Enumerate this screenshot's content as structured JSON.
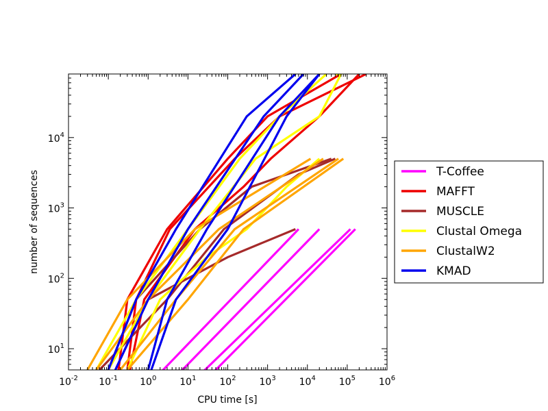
{
  "chart_data": {
    "type": "line",
    "xlabel": "CPU time [s]",
    "ylabel": "number of sequences",
    "x_scale": "log",
    "y_scale": "log",
    "xlim": [
      0.01,
      1000000
    ],
    "ylim": [
      5,
      80000
    ],
    "x_ticks": [
      {
        "base": "10",
        "exp": "-2",
        "value": 0.01
      },
      {
        "base": "10",
        "exp": "-1",
        "value": 0.1
      },
      {
        "base": "10",
        "exp": "0",
        "value": 1
      },
      {
        "base": "10",
        "exp": "1",
        "value": 10
      },
      {
        "base": "10",
        "exp": "2",
        "value": 100
      },
      {
        "base": "10",
        "exp": "3",
        "value": 1000
      },
      {
        "base": "10",
        "exp": "4",
        "value": 10000
      },
      {
        "base": "10",
        "exp": "5",
        "value": 100000
      },
      {
        "base": "10",
        "exp": "6",
        "value": 1000000
      }
    ],
    "y_ticks": [
      {
        "base": "10",
        "exp": "1",
        "value": 10
      },
      {
        "base": "10",
        "exp": "2",
        "value": 100
      },
      {
        "base": "10",
        "exp": "3",
        "value": 1000
      },
      {
        "base": "10",
        "exp": "4",
        "value": 10000
      }
    ],
    "grid": false,
    "legend_position": "right",
    "series": [
      {
        "name": "T-Coffee",
        "color": "#ff00ff",
        "lines": [
          [
            [
              0.5,
              2
            ],
            [
              6000,
              500
            ]
          ],
          [
            [
              1.5,
              2
            ],
            [
              20000,
              500
            ]
          ],
          [
            [
              5,
              2
            ],
            [
              120000,
              500
            ]
          ],
          [
            [
              10,
              2
            ],
            [
              160000,
              500
            ]
          ]
        ]
      },
      {
        "name": "MAFFT",
        "color": "#ee0000",
        "lines": [
          [
            [
              0.3,
              5
            ],
            [
              0.5,
              50
            ],
            [
              3.5,
              500
            ],
            [
              150,
              5000
            ],
            [
              2000,
              20000
            ],
            [
              300000,
              80000
            ]
          ],
          [
            [
              0.18,
              5
            ],
            [
              0.3,
              50
            ],
            [
              3,
              500
            ],
            [
              100,
              5000
            ],
            [
              1000,
              20000
            ],
            [
              70000,
              80000
            ]
          ],
          [
            [
              0.35,
              5
            ],
            [
              0.8,
              50
            ],
            [
              15,
              500
            ],
            [
              250,
              2000
            ],
            [
              1200,
              5000
            ],
            [
              20000,
              20000
            ],
            [
              200000,
              80000
            ]
          ]
        ]
      },
      {
        "name": "MUSCLE",
        "color": "#a52a2a",
        "lines": [
          [
            [
              0.1,
              5
            ],
            [
              0.5,
              50
            ],
            [
              20,
              500
            ],
            [
              400,
              2000
            ],
            [
              40000,
              5000
            ]
          ],
          [
            [
              0.06,
              5
            ],
            [
              3,
              50
            ],
            [
              80,
              500
            ],
            [
              6000,
              3000
            ],
            [
              50000,
              5000
            ]
          ],
          [
            [
              0.15,
              5
            ],
            [
              1,
              50
            ],
            [
              100,
              200
            ],
            [
              5000,
              500
            ]
          ]
        ]
      },
      {
        "name": "Clustal Omega",
        "color": "#ffff00",
        "lines": [
          [
            [
              0.05,
              5
            ],
            [
              0.5,
              50
            ],
            [
              10,
              500
            ],
            [
              200,
              5000
            ],
            [
              2000,
              20000
            ],
            [
              30000,
              80000
            ]
          ],
          [
            [
              0.1,
              5
            ],
            [
              1,
              50
            ],
            [
              20,
              500
            ],
            [
              500,
              5000
            ],
            [
              20000,
              20000
            ],
            [
              70000,
              80000
            ],
            [
              50000,
              80000
            ]
          ],
          [
            [
              0.3,
              5
            ],
            [
              2,
              50
            ],
            [
              30,
              200
            ],
            [
              300,
              500
            ],
            [
              3000,
              2000
            ],
            [
              20000,
              5000
            ]
          ]
        ]
      },
      {
        "name": "ClustalW2",
        "color": "#ffa500",
        "lines": [
          [
            [
              0.03,
              5
            ],
            [
              0.3,
              50
            ],
            [
              15,
              500
            ],
            [
              12000,
              5000
            ]
          ],
          [
            [
              0.05,
              5
            ],
            [
              1,
              50
            ],
            [
              60,
              500
            ],
            [
              25000,
              5000
            ]
          ],
          [
            [
              0.2,
              5
            ],
            [
              5,
              50
            ],
            [
              150,
              500
            ],
            [
              60000,
              5000
            ]
          ],
          [
            [
              0.3,
              5
            ],
            [
              10,
              50
            ],
            [
              250,
              500
            ],
            [
              80000,
              5000
            ]
          ]
        ]
      },
      {
        "name": "KMAD",
        "color": "#0000ee",
        "lines": [
          [
            [
              0.1,
              5
            ],
            [
              0.5,
              50
            ],
            [
              5,
              500
            ],
            [
              300,
              20000
            ],
            [
              5000,
              80000
            ]
          ],
          [
            [
              0.15,
              5
            ],
            [
              1,
              50
            ],
            [
              10,
              500
            ],
            [
              800,
              20000
            ],
            [
              8000,
              80000
            ]
          ],
          [
            [
              1,
              5
            ],
            [
              3,
              50
            ],
            [
              30,
              500
            ],
            [
              2000,
              20000
            ],
            [
              20000,
              80000
            ]
          ],
          [
            [
              1.2,
              5
            ],
            [
              5,
              50
            ],
            [
              100,
              500
            ],
            [
              3000,
              20000
            ],
            [
              20000,
              80000
            ]
          ]
        ]
      }
    ]
  }
}
